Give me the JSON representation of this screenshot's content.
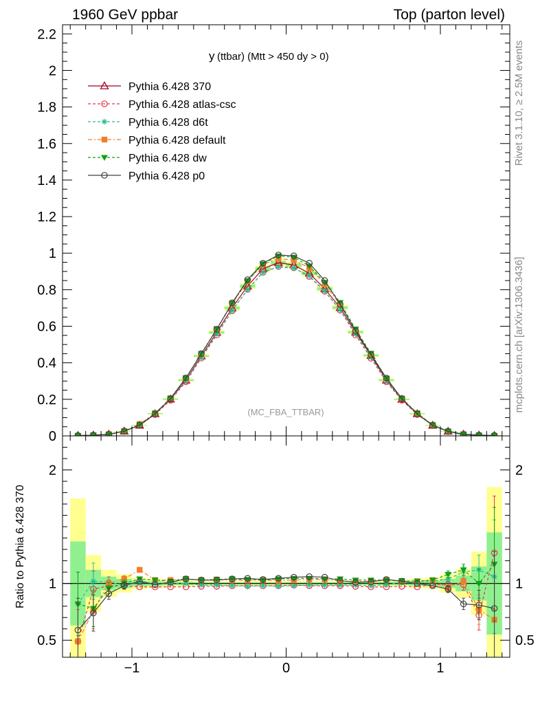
{
  "header": {
    "left": "1960 GeV ppbar",
    "right": "Top (parton level)"
  },
  "side_labels": {
    "rivet": "Rivet 3.1.10, ≥ 2.5M events",
    "mcplots": "mcplots.cern.ch [arXiv:1306.3436]"
  },
  "colors": {
    "370": "#a00020",
    "atlas-csc": "#e8344e",
    "d6t": "#1fbf8f",
    "default": "#f07f2a",
    "dw": "#12a012",
    "p0": "#404040",
    "band_yellow": "#ffff90",
    "band_green": "#90f090"
  },
  "chart_data": [
    {
      "type": "line",
      "title": "y (ttbar) (Mtt > 450 dy > 0)",
      "title_main": "y",
      "title_rest": " (ttbar) (Mtt > 450 dy > 0)",
      "watermark": "(MC_FBA_TTBAR)",
      "xlim": [
        -1.45,
        1.45
      ],
      "ylim": [
        0,
        2.25
      ],
      "y_ticks": [
        "0",
        "0.2",
        "0.4",
        "0.6",
        "0.8",
        "1",
        "1.2",
        "1.4",
        "1.6",
        "1.8",
        "2",
        "2.2"
      ],
      "x": [
        -1.35,
        -1.25,
        -1.15,
        -1.05,
        -0.95,
        -0.85,
        -0.75,
        -0.65,
        -0.55,
        -0.45,
        -0.35,
        -0.25,
        -0.15,
        -0.05,
        0.05,
        0.15,
        0.25,
        0.35,
        0.45,
        0.55,
        0.65,
        0.75,
        0.85,
        0.95,
        1.05,
        1.15,
        1.25,
        1.35
      ],
      "legend_position": "top-left",
      "series": [
        {
          "name": "Pythia 6.428 370",
          "key": "370",
          "marker": "triangle-open",
          "dash": "",
          "values": [
            0.002,
            0.004,
            0.009,
            0.026,
            0.058,
            0.121,
            0.201,
            0.305,
            0.437,
            0.566,
            0.7,
            0.82,
            0.915,
            0.948,
            0.935,
            0.89,
            0.805,
            0.702,
            0.568,
            0.44,
            0.305,
            0.2,
            0.121,
            0.058,
            0.025,
            0.009,
            0.004,
            0.002
          ]
        },
        {
          "name": "Pythia 6.428 atlas-csc",
          "key": "atlas-csc",
          "marker": "circle-open",
          "dash": "4,3",
          "values": [
            0.002,
            0.004,
            0.009,
            0.026,
            0.057,
            0.117,
            0.195,
            0.296,
            0.426,
            0.552,
            0.685,
            0.802,
            0.895,
            0.927,
            0.92,
            0.872,
            0.791,
            0.688,
            0.552,
            0.425,
            0.296,
            0.195,
            0.117,
            0.058,
            0.025,
            0.009,
            0.004,
            0.002
          ]
        },
        {
          "name": "Pythia 6.428 d6t",
          "key": "d6t",
          "marker": "star",
          "dash": "4,3",
          "values": [
            0.002,
            0.004,
            0.009,
            0.026,
            0.059,
            0.121,
            0.201,
            0.304,
            0.43,
            0.558,
            0.686,
            0.8,
            0.894,
            0.925,
            0.918,
            0.875,
            0.793,
            0.69,
            0.558,
            0.43,
            0.303,
            0.202,
            0.122,
            0.059,
            0.026,
            0.01,
            0.005,
            0.002
          ]
        },
        {
          "name": "Pythia 6.428 default",
          "key": "default",
          "marker": "square",
          "dash": "6,3,2,3",
          "values": [
            0.001,
            0.004,
            0.009,
            0.027,
            0.065,
            0.124,
            0.206,
            0.317,
            0.448,
            0.585,
            0.722,
            0.848,
            0.938,
            0.97,
            0.962,
            0.92,
            0.831,
            0.718,
            0.58,
            0.445,
            0.315,
            0.205,
            0.124,
            0.06,
            0.024,
            0.009,
            0.003,
            0.001
          ]
        },
        {
          "name": "Pythia 6.428 dw",
          "key": "dw",
          "marker": "triangle-down",
          "dash": "4,3",
          "values": [
            0.002,
            0.004,
            0.009,
            0.026,
            0.06,
            0.124,
            0.205,
            0.316,
            0.451,
            0.585,
            0.727,
            0.848,
            0.942,
            0.985,
            0.978,
            0.93,
            0.84,
            0.73,
            0.585,
            0.452,
            0.314,
            0.205,
            0.124,
            0.06,
            0.027,
            0.01,
            0.005,
            0.002
          ]
        },
        {
          "name": "Pythia 6.428 p0",
          "key": "p0",
          "marker": "circle-open",
          "dash": "",
          "values": [
            0.001,
            0.003,
            0.008,
            0.025,
            0.059,
            0.12,
            0.204,
            0.317,
            0.45,
            0.583,
            0.728,
            0.855,
            0.945,
            0.99,
            0.985,
            0.945,
            0.85,
            0.72,
            0.575,
            0.445,
            0.316,
            0.204,
            0.12,
            0.057,
            0.024,
            0.007,
            0.003,
            0.002
          ]
        }
      ]
    },
    {
      "type": "line",
      "ylabel": "Ratio to Pythia 6.428 370",
      "xlim": [
        -1.45,
        1.45
      ],
      "ylim": [
        0.35,
        2.3
      ],
      "x_ticks": [
        "−1",
        "0",
        "1"
      ],
      "y_ticks": [
        "0.5",
        "1",
        "2"
      ],
      "reference_band": {
        "outer": [
          0.75,
          0.25,
          0.12,
          0.08,
          0.05,
          0.04,
          0.03,
          0.03,
          0.02,
          0.02,
          0.02,
          0.02,
          0.02,
          0.02,
          0.02,
          0.02,
          0.02,
          0.02,
          0.02,
          0.02,
          0.03,
          0.03,
          0.04,
          0.05,
          0.08,
          0.13,
          0.28,
          0.85
        ],
        "inner": [
          0.37,
          0.12,
          0.06,
          0.04,
          0.025,
          0.02,
          0.015,
          0.015,
          0.01,
          0.01,
          0.01,
          0.01,
          0.01,
          0.01,
          0.01,
          0.01,
          0.01,
          0.01,
          0.01,
          0.01,
          0.015,
          0.015,
          0.02,
          0.025,
          0.04,
          0.07,
          0.15,
          0.45
        ]
      },
      "series": [
        {
          "name": "Pythia 6.428 atlas-csc",
          "key": "atlas-csc",
          "values": [
            0.49,
            0.95,
            0.98,
            0.98,
            0.97,
            0.97,
            0.97,
            0.97,
            0.975,
            0.975,
            0.98,
            0.98,
            0.98,
            0.98,
            0.985,
            0.98,
            0.98,
            0.98,
            0.975,
            0.97,
            0.97,
            0.975,
            0.97,
            0.99,
            0.99,
            0.99,
            0.72,
            1.27
          ]
        },
        {
          "name": "Pythia 6.428 d6t",
          "key": "d6t",
          "values": [
            0.82,
            1.02,
            1.01,
            0.99,
            1.01,
            1.0,
            1.0,
            1.0,
            0.985,
            0.985,
            0.98,
            0.975,
            0.98,
            0.975,
            0.98,
            0.985,
            0.985,
            0.985,
            0.985,
            0.98,
            0.99,
            1.01,
            1.0,
            1.02,
            1.04,
            1.1,
            1.12,
            1.06
          ]
        },
        {
          "name": "Pythia 6.428 default",
          "key": "default",
          "values": [
            0.49,
            0.76,
            1.0,
            1.04,
            1.12,
            1.03,
            1.03,
            1.04,
            1.03,
            1.035,
            1.03,
            1.03,
            1.03,
            1.025,
            1.03,
            1.035,
            1.035,
            1.02,
            1.02,
            1.015,
            1.03,
            1.02,
            1.02,
            1.03,
            0.96,
            1.02,
            0.77,
            0.68
          ]
        },
        {
          "name": "Pythia 6.428 dw",
          "key": "dw",
          "values": [
            0.82,
            0.78,
            0.96,
            1.0,
            1.04,
            1.03,
            1.02,
            1.04,
            1.03,
            1.035,
            1.04,
            1.035,
            1.03,
            1.04,
            1.045,
            1.045,
            1.04,
            1.04,
            1.03,
            1.03,
            1.03,
            1.025,
            1.02,
            1.03,
            1.08,
            1.12,
            1.0,
            1.17
          ]
        },
        {
          "name": "Pythia 6.428 p0",
          "key": "p0",
          "values": [
            0.59,
            0.74,
            0.91,
            0.98,
            1.02,
            0.99,
            1.01,
            1.04,
            1.03,
            1.03,
            1.04,
            1.045,
            1.035,
            1.045,
            1.055,
            1.06,
            1.055,
            1.025,
            1.01,
            1.015,
            1.035,
            1.02,
            1.0,
            0.98,
            0.95,
            0.82,
            0.81,
            0.78
          ]
        }
      ]
    }
  ]
}
